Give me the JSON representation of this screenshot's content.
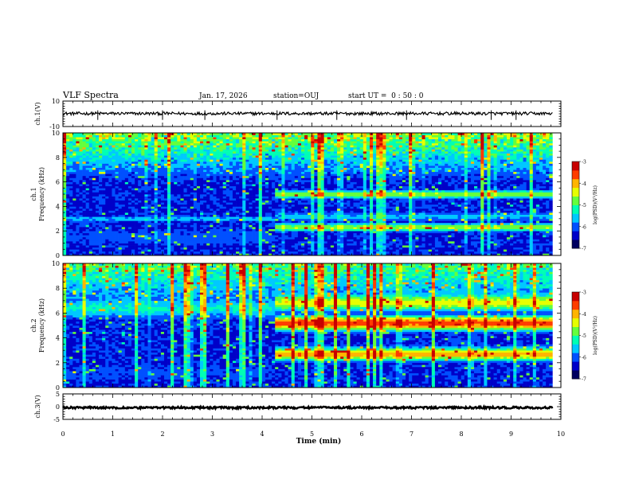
{
  "header": {
    "title": "VLF Spectra",
    "date": "Jan. 17, 2026",
    "station": "station=OUJ",
    "start_ut": "start UT =  0 : 50 : 0"
  },
  "colors": {
    "waveform": "#000000",
    "colormap": [
      "#000060",
      "#0000c8",
      "#0050ff",
      "#00c8ff",
      "#00ffb4",
      "#64ff3c",
      "#e6ff00",
      "#ffb400",
      "#ff3c00",
      "#c80000"
    ]
  },
  "chart_data": [
    {
      "id": "ch1-waveform",
      "type": "line",
      "ylabel": "ch.1(V)",
      "ylim": [
        -10,
        10
      ],
      "yticks": [
        10,
        -10
      ],
      "xlim": [
        0,
        10
      ],
      "baseline_v": 0.2,
      "noise_amp_v": 1.2,
      "spikes_min": [
        0.7,
        2.0,
        2.85,
        4.3,
        5.5,
        6.9,
        8.6,
        9.1
      ]
    },
    {
      "id": "ch1-spectrogram",
      "type": "heatmap",
      "ylabel": "ch.1\nFrequency (kHz)",
      "ylim": [
        0,
        10
      ],
      "yticks": [
        0,
        2,
        4,
        6,
        8,
        10
      ],
      "xlim": [
        0,
        10
      ],
      "change_time_min": 4.25,
      "bands_before": [
        {
          "f": 1.5,
          "w": 1.4,
          "level": 0.2
        },
        {
          "f": 3.0,
          "w": 0.4,
          "level": 0.3
        }
      ],
      "bands_after": [
        {
          "f": 2.3,
          "w": 0.5,
          "level": 0.55
        },
        {
          "f": 5.0,
          "w": 0.5,
          "level": 0.55
        },
        {
          "f": 3.2,
          "w": 0.6,
          "level": 0.3
        }
      ],
      "high_freq_noise_level": 0.55,
      "colorbar": {
        "label": "log(PSD)(V²/Hz)",
        "range": [
          -7,
          -3
        ],
        "ticks": [
          -3,
          -4,
          -5,
          -6,
          -7
        ]
      }
    },
    {
      "id": "ch2-spectrogram",
      "type": "heatmap",
      "ylabel": "ch.2\nFrequency (kHz)",
      "ylim": [
        0,
        10
      ],
      "yticks": [
        0,
        2,
        4,
        6,
        8,
        10
      ],
      "xlim": [
        0,
        10
      ],
      "change_time_min": 4.25,
      "bands_before": [
        {
          "f": 1.2,
          "w": 1.6,
          "level": 0.18
        },
        {
          "f": 6.3,
          "w": 1.2,
          "level": 0.35
        }
      ],
      "bands_after": [
        {
          "f": 5.2,
          "w": 0.9,
          "level": 0.82
        },
        {
          "f": 2.7,
          "w": 0.8,
          "level": 0.72
        },
        {
          "f": 6.8,
          "w": 1.0,
          "level": 0.55
        }
      ],
      "high_freq_noise_level": 0.45,
      "colorbar": {
        "label": "log(PSD)(V²/Hz)",
        "range": [
          -7,
          -3
        ],
        "ticks": [
          -3,
          -4,
          -5,
          -6,
          -7
        ]
      }
    },
    {
      "id": "ch3-waveform",
      "type": "line",
      "ylabel": "ch.3(V)",
      "ylim": [
        -5,
        5
      ],
      "yticks": [
        5,
        0,
        -5
      ],
      "xlim": [
        0,
        10
      ],
      "baseline_v": -0.4,
      "noise_amp_v": 0.4,
      "spikes_min": []
    }
  ],
  "xaxis": {
    "label": "Time (min)",
    "ticks": [
      0,
      1,
      2,
      3,
      4,
      5,
      6,
      7,
      8,
      9,
      10
    ]
  }
}
